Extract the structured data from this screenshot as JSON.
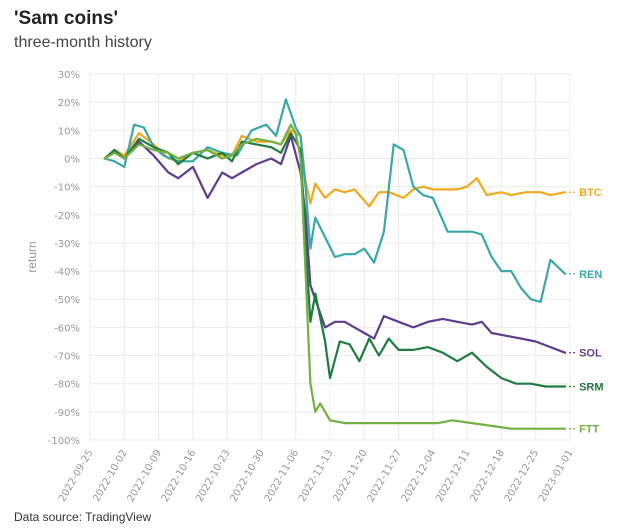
{
  "title": "'Sam coins'",
  "subtitle": "three-month history",
  "source": "Data source: TradingView",
  "chart_data": {
    "type": "line",
    "ylabel": "return",
    "y_ticks": [
      "30%",
      "20%",
      "10%",
      "0%",
      "-10%",
      "-20%",
      "-30%",
      "-40%",
      "-50%",
      "-60%",
      "-70%",
      "-80%",
      "-90%",
      "-100%"
    ],
    "ylim": [
      -100,
      30
    ],
    "x_ticks": [
      "2022-09-25",
      "2022-10-02",
      "2022-10-09",
      "2022-10-16",
      "2022-10-23",
      "2022-10-30",
      "2022-11-06",
      "2022-11-13",
      "2022-11-20",
      "2022-11-27",
      "2022-12-04",
      "2022-12-11",
      "2022-12-18",
      "2022-12-25",
      "2023-01-01"
    ],
    "series": [
      {
        "name": "BTC",
        "color": "#f3a81c",
        "points": [
          [
            "2022-09-28",
            0
          ],
          [
            "2022-09-30",
            3
          ],
          [
            "2022-10-02",
            1
          ],
          [
            "2022-10-05",
            9
          ],
          [
            "2022-10-08",
            5
          ],
          [
            "2022-10-11",
            0
          ],
          [
            "2022-10-13",
            -1
          ],
          [
            "2022-10-16",
            2
          ],
          [
            "2022-10-19",
            3
          ],
          [
            "2022-10-22",
            1
          ],
          [
            "2022-10-24",
            1
          ],
          [
            "2022-10-26",
            8
          ],
          [
            "2022-10-29",
            6
          ],
          [
            "2022-11-01",
            6
          ],
          [
            "2022-11-03",
            5
          ],
          [
            "2022-11-05",
            10
          ],
          [
            "2022-11-07",
            8
          ],
          [
            "2022-11-08",
            -8
          ],
          [
            "2022-11-09",
            -16
          ],
          [
            "2022-11-10",
            -9
          ],
          [
            "2022-11-12",
            -14
          ],
          [
            "2022-11-14",
            -11
          ],
          [
            "2022-11-16",
            -12
          ],
          [
            "2022-11-18",
            -11
          ],
          [
            "2022-11-21",
            -17
          ],
          [
            "2022-11-23",
            -12
          ],
          [
            "2022-11-25",
            -12
          ],
          [
            "2022-11-28",
            -14
          ],
          [
            "2022-11-30",
            -11
          ],
          [
            "2022-12-02",
            -10
          ],
          [
            "2022-12-04",
            -11
          ],
          [
            "2022-12-06",
            -11
          ],
          [
            "2022-12-09",
            -11
          ],
          [
            "2022-12-11",
            -10
          ],
          [
            "2022-12-13",
            -7
          ],
          [
            "2022-12-15",
            -13
          ],
          [
            "2022-12-18",
            -12
          ],
          [
            "2022-12-20",
            -13
          ],
          [
            "2022-12-23",
            -12
          ],
          [
            "2022-12-26",
            -12
          ],
          [
            "2022-12-28",
            -13
          ],
          [
            "2022-12-31",
            -12
          ]
        ]
      },
      {
        "name": "REN",
        "color": "#3aa8a8",
        "points": [
          [
            "2022-09-28",
            0
          ],
          [
            "2022-09-30",
            -1
          ],
          [
            "2022-10-02",
            -3
          ],
          [
            "2022-10-04",
            12
          ],
          [
            "2022-10-06",
            11
          ],
          [
            "2022-10-08",
            4
          ],
          [
            "2022-10-10",
            1
          ],
          [
            "2022-10-13",
            -1
          ],
          [
            "2022-10-16",
            -1
          ],
          [
            "2022-10-19",
            4
          ],
          [
            "2022-10-22",
            2
          ],
          [
            "2022-10-25",
            1
          ],
          [
            "2022-10-28",
            10
          ],
          [
            "2022-10-31",
            12
          ],
          [
            "2022-11-02",
            8
          ],
          [
            "2022-11-04",
            21
          ],
          [
            "2022-11-06",
            11
          ],
          [
            "2022-11-07",
            8
          ],
          [
            "2022-11-08",
            -10
          ],
          [
            "2022-11-09",
            -32
          ],
          [
            "2022-11-10",
            -21
          ],
          [
            "2022-11-12",
            -28
          ],
          [
            "2022-11-14",
            -35
          ],
          [
            "2022-11-16",
            -34
          ],
          [
            "2022-11-18",
            -34
          ],
          [
            "2022-11-20",
            -32
          ],
          [
            "2022-11-22",
            -37
          ],
          [
            "2022-11-24",
            -26
          ],
          [
            "2022-11-26",
            5
          ],
          [
            "2022-11-28",
            3
          ],
          [
            "2022-11-30",
            -10
          ],
          [
            "2022-12-02",
            -13
          ],
          [
            "2022-12-04",
            -14
          ],
          [
            "2022-12-07",
            -26
          ],
          [
            "2022-12-10",
            -26
          ],
          [
            "2022-12-12",
            -26
          ],
          [
            "2022-12-14",
            -27
          ],
          [
            "2022-12-16",
            -35
          ],
          [
            "2022-12-18",
            -40
          ],
          [
            "2022-12-20",
            -40
          ],
          [
            "2022-12-22",
            -46
          ],
          [
            "2022-12-24",
            -50
          ],
          [
            "2022-12-26",
            -51
          ],
          [
            "2022-12-28",
            -36
          ],
          [
            "2022-12-31",
            -41
          ]
        ]
      },
      {
        "name": "SOL",
        "color": "#5e3c8f",
        "points": [
          [
            "2022-09-28",
            0
          ],
          [
            "2022-09-30",
            3
          ],
          [
            "2022-10-02",
            0
          ],
          [
            "2022-10-05",
            6
          ],
          [
            "2022-10-08",
            1
          ],
          [
            "2022-10-11",
            -5
          ],
          [
            "2022-10-13",
            -7
          ],
          [
            "2022-10-16",
            -3
          ],
          [
            "2022-10-19",
            -14
          ],
          [
            "2022-10-22",
            -5
          ],
          [
            "2022-10-24",
            -7
          ],
          [
            "2022-10-26",
            -5
          ],
          [
            "2022-10-29",
            -2
          ],
          [
            "2022-11-01",
            0
          ],
          [
            "2022-11-03",
            -2
          ],
          [
            "2022-11-05",
            8
          ],
          [
            "2022-11-07",
            -5
          ],
          [
            "2022-11-08",
            -20
          ],
          [
            "2022-11-09",
            -45
          ],
          [
            "2022-11-10",
            -50
          ],
          [
            "2022-11-12",
            -60
          ],
          [
            "2022-11-14",
            -58
          ],
          [
            "2022-11-16",
            -58
          ],
          [
            "2022-11-18",
            -60
          ],
          [
            "2022-11-20",
            -62
          ],
          [
            "2022-11-22",
            -64
          ],
          [
            "2022-11-24",
            -56
          ],
          [
            "2022-11-27",
            -58
          ],
          [
            "2022-11-30",
            -60
          ],
          [
            "2022-12-03",
            -58
          ],
          [
            "2022-12-06",
            -57
          ],
          [
            "2022-12-09",
            -58
          ],
          [
            "2022-12-12",
            -59
          ],
          [
            "2022-12-14",
            -58
          ],
          [
            "2022-12-16",
            -62
          ],
          [
            "2022-12-19",
            -63
          ],
          [
            "2022-12-22",
            -64
          ],
          [
            "2022-12-25",
            -65
          ],
          [
            "2022-12-28",
            -67
          ],
          [
            "2022-12-31",
            -69
          ]
        ]
      },
      {
        "name": "SRM",
        "color": "#1e7d3e",
        "points": [
          [
            "2022-09-28",
            0
          ],
          [
            "2022-09-30",
            3
          ],
          [
            "2022-10-02",
            0
          ],
          [
            "2022-10-05",
            7
          ],
          [
            "2022-10-08",
            4
          ],
          [
            "2022-10-11",
            2
          ],
          [
            "2022-10-13",
            -2
          ],
          [
            "2022-10-16",
            2
          ],
          [
            "2022-10-19",
            0
          ],
          [
            "2022-10-22",
            2
          ],
          [
            "2022-10-24",
            -1
          ],
          [
            "2022-10-26",
            6
          ],
          [
            "2022-10-29",
            5
          ],
          [
            "2022-11-01",
            4
          ],
          [
            "2022-11-03",
            2
          ],
          [
            "2022-11-05",
            9
          ],
          [
            "2022-11-07",
            3
          ],
          [
            "2022-11-08",
            -30
          ],
          [
            "2022-11-09",
            -58
          ],
          [
            "2022-11-10",
            -48
          ],
          [
            "2022-11-12",
            -65
          ],
          [
            "2022-11-13",
            -78
          ],
          [
            "2022-11-15",
            -65
          ],
          [
            "2022-11-17",
            -66
          ],
          [
            "2022-11-19",
            -72
          ],
          [
            "2022-11-21",
            -64
          ],
          [
            "2022-11-23",
            -70
          ],
          [
            "2022-11-25",
            -64
          ],
          [
            "2022-11-27",
            -68
          ],
          [
            "2022-11-30",
            -68
          ],
          [
            "2022-12-03",
            -67
          ],
          [
            "2022-12-06",
            -69
          ],
          [
            "2022-12-09",
            -72
          ],
          [
            "2022-12-12",
            -69
          ],
          [
            "2022-12-15",
            -74
          ],
          [
            "2022-12-18",
            -78
          ],
          [
            "2022-12-21",
            -80
          ],
          [
            "2022-12-24",
            -80
          ],
          [
            "2022-12-27",
            -81
          ],
          [
            "2022-12-31",
            -81
          ]
        ]
      },
      {
        "name": "FTT",
        "color": "#73b043",
        "points": [
          [
            "2022-09-28",
            0
          ],
          [
            "2022-09-30",
            2
          ],
          [
            "2022-10-02",
            0
          ],
          [
            "2022-10-05",
            5
          ],
          [
            "2022-10-08",
            3
          ],
          [
            "2022-10-11",
            2
          ],
          [
            "2022-10-13",
            0
          ],
          [
            "2022-10-16",
            2
          ],
          [
            "2022-10-19",
            3
          ],
          [
            "2022-10-22",
            0
          ],
          [
            "2022-10-24",
            1
          ],
          [
            "2022-10-26",
            5
          ],
          [
            "2022-10-29",
            7
          ],
          [
            "2022-11-01",
            6
          ],
          [
            "2022-11-03",
            5
          ],
          [
            "2022-11-05",
            12
          ],
          [
            "2022-11-06",
            9
          ],
          [
            "2022-11-07",
            0
          ],
          [
            "2022-11-08",
            -40
          ],
          [
            "2022-11-09",
            -80
          ],
          [
            "2022-11-10",
            -90
          ],
          [
            "2022-11-11",
            -87
          ],
          [
            "2022-11-13",
            -93
          ],
          [
            "2022-11-16",
            -94
          ],
          [
            "2022-11-20",
            -94
          ],
          [
            "2022-11-25",
            -94
          ],
          [
            "2022-11-30",
            -94
          ],
          [
            "2022-12-05",
            -94
          ],
          [
            "2022-12-08",
            -93
          ],
          [
            "2022-12-12",
            -94
          ],
          [
            "2022-12-16",
            -95
          ],
          [
            "2022-12-20",
            -96
          ],
          [
            "2022-12-24",
            -96
          ],
          [
            "2022-12-28",
            -96
          ],
          [
            "2022-12-31",
            -96
          ]
        ]
      }
    ]
  }
}
